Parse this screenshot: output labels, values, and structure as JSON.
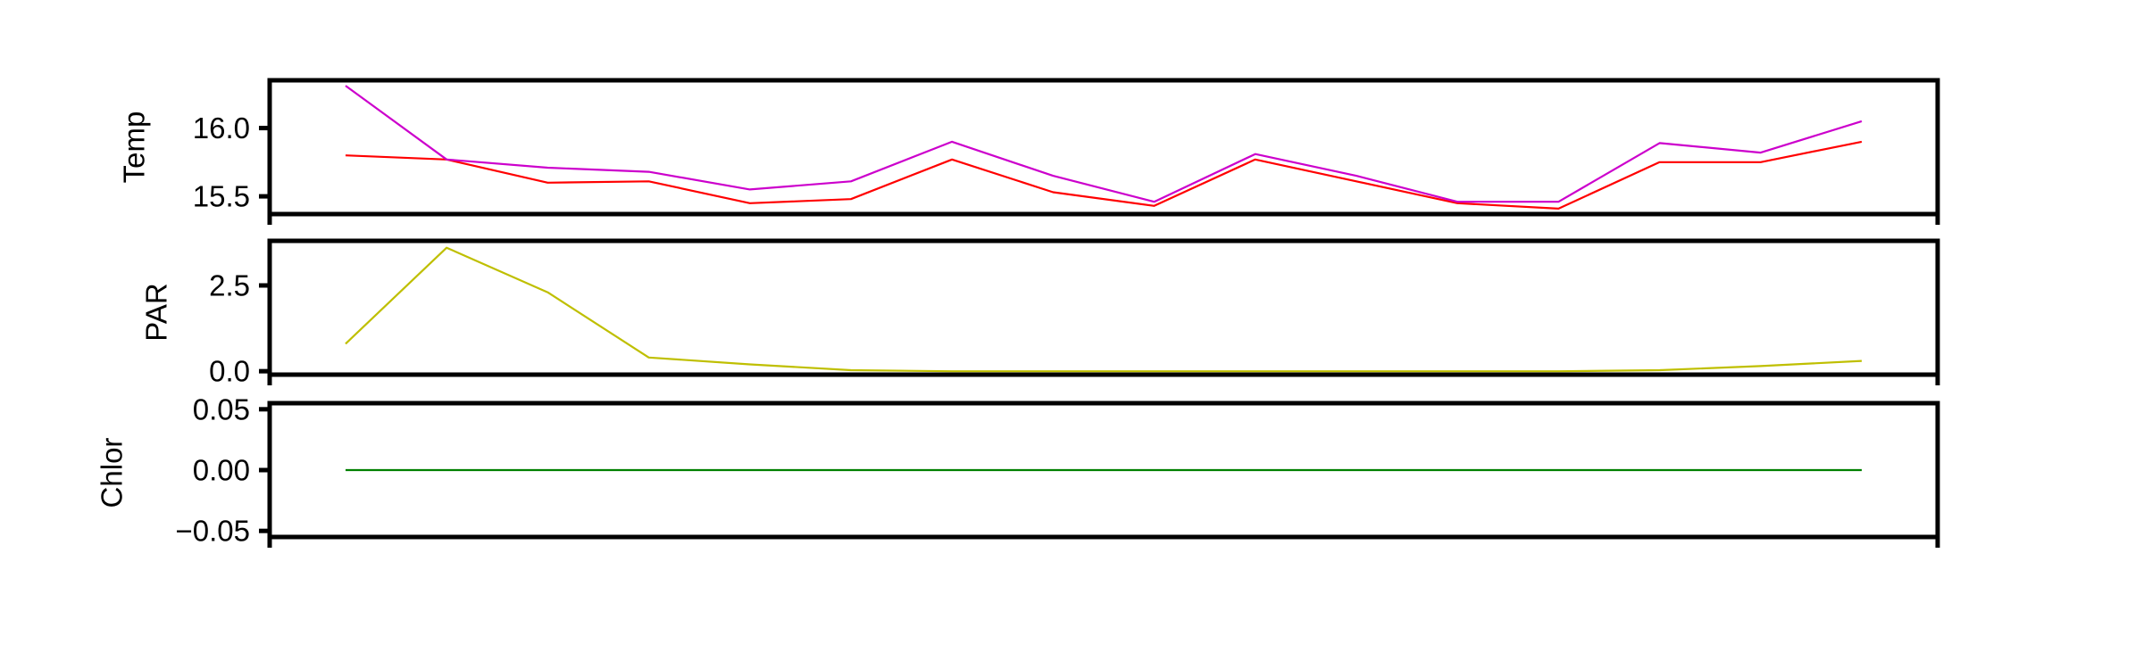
{
  "chart_data": [
    {
      "type": "line",
      "ylabel": "Temp",
      "x": [
        0,
        1,
        2,
        3,
        4,
        5,
        6,
        7,
        8,
        9,
        10,
        11,
        12,
        13,
        14,
        15
      ],
      "yticks": [
        15.5,
        16.0
      ],
      "ylim": [
        15.37,
        16.35
      ],
      "tick_decimals": 1,
      "grid": false,
      "series": [
        {
          "color": "#ff0000",
          "values": [
            15.8,
            15.77,
            15.6,
            15.61,
            15.45,
            15.48,
            15.77,
            15.53,
            15.43,
            15.77,
            15.61,
            15.45,
            15.41,
            15.75,
            15.75,
            15.9
          ]
        },
        {
          "color": "#cc00cc",
          "values": [
            16.31,
            15.77,
            15.71,
            15.68,
            15.55,
            15.61,
            15.9,
            15.65,
            15.46,
            15.81,
            15.65,
            15.46,
            15.46,
            15.89,
            15.82,
            16.05
          ]
        }
      ]
    },
    {
      "type": "line",
      "ylabel": "PAR",
      "x": [
        0,
        1,
        2,
        3,
        4,
        5,
        6,
        7,
        8,
        9,
        10,
        11,
        12,
        13,
        14,
        15
      ],
      "yticks": [
        0.0,
        2.5
      ],
      "ylim": [
        -0.1,
        3.8
      ],
      "tick_decimals": 1,
      "grid": false,
      "series": [
        {
          "color": "#bfbf00",
          "values": [
            0.8,
            3.6,
            2.3,
            0.4,
            0.2,
            0.03,
            0.0,
            0.0,
            0.0,
            0.0,
            0.0,
            0.0,
            0.0,
            0.03,
            0.15,
            0.3
          ]
        }
      ]
    },
    {
      "type": "line",
      "ylabel": "Chlor",
      "x": [
        0,
        1,
        2,
        3,
        4,
        5,
        6,
        7,
        8,
        9,
        10,
        11,
        12,
        13,
        14,
        15
      ],
      "yticks": [
        -0.05,
        0.0,
        0.05
      ],
      "ylim": [
        -0.055,
        0.055
      ],
      "tick_decimals": 2,
      "grid": false,
      "series": [
        {
          "color": "#008000",
          "values": [
            0,
            0,
            0,
            0,
            0,
            0,
            0,
            0,
            0,
            0,
            0,
            0,
            0,
            0,
            0,
            0
          ]
        }
      ]
    }
  ]
}
